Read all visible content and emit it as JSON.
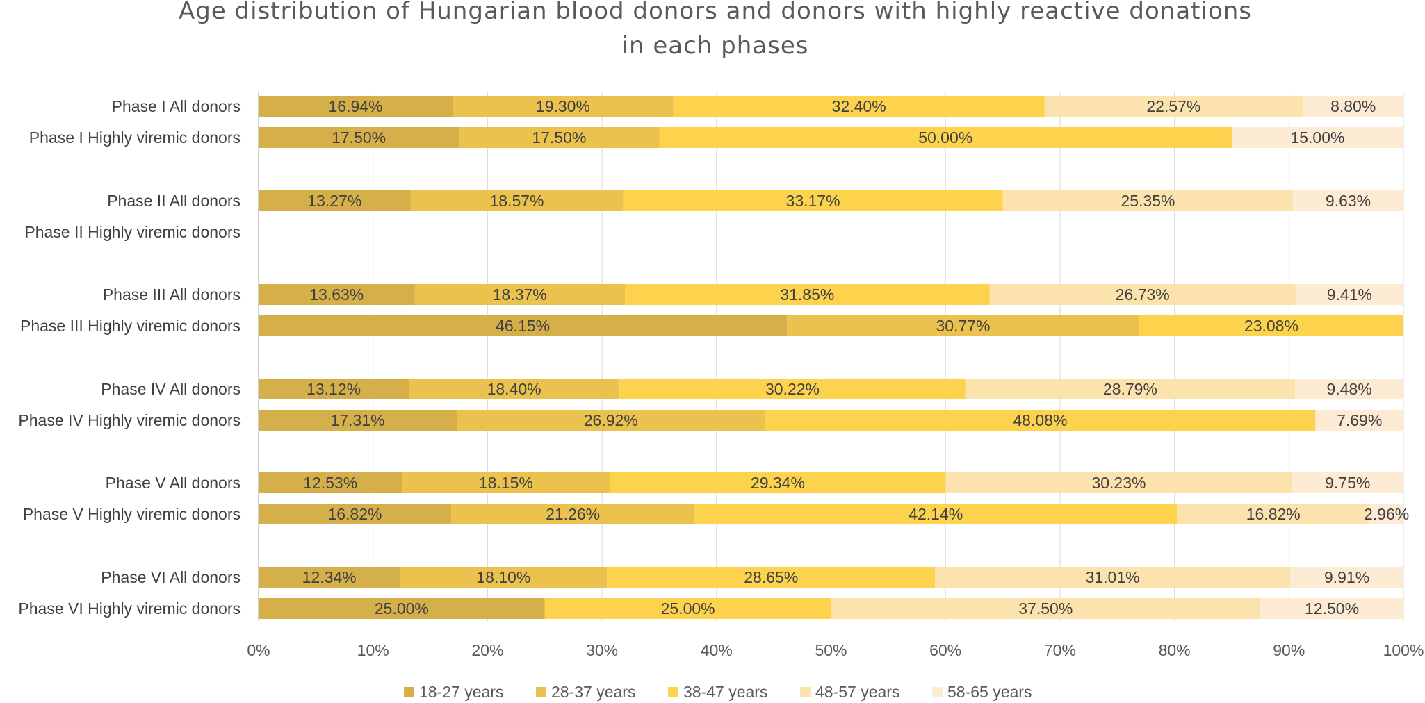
{
  "chart_data": {
    "type": "bar",
    "orientation": "horizontal",
    "stacked": "percent",
    "title_lines": [
      "Age distribution of Hungarian blood donors and donors with highly reactive donations",
      "in each phases"
    ],
    "categories": [
      "Phase I All donors",
      "Phase I Highly viremic donors",
      "Phase II All donors",
      "Phase II Highly viremic donors",
      "Phase III All donors",
      "Phase III Highly viremic donors",
      "Phase IV All donors",
      "Phase IV Highly viremic donors",
      "Phase V All donors",
      "Phase V Highly viremic donors",
      "Phase VI All donors",
      "Phase VI Highly viremic donors"
    ],
    "series": [
      {
        "name": "18-27 years",
        "color": "#D4AF4A",
        "values": [
          16.94,
          17.5,
          13.27,
          null,
          13.63,
          46.15,
          13.12,
          17.31,
          12.53,
          16.82,
          12.34,
          25.0
        ]
      },
      {
        "name": "28-37 years",
        "color": "#EBC24E",
        "values": [
          19.3,
          17.5,
          18.57,
          null,
          18.37,
          30.77,
          18.4,
          26.92,
          18.15,
          21.26,
          18.1,
          null
        ]
      },
      {
        "name": "38-47 years",
        "color": "#FDD34E",
        "values": [
          32.4,
          50.0,
          33.17,
          null,
          31.85,
          23.08,
          30.22,
          48.08,
          29.34,
          42.14,
          28.65,
          25.0
        ]
      },
      {
        "name": "48-57 years",
        "color": "#FCE3AD",
        "values": [
          22.57,
          null,
          25.35,
          null,
          26.73,
          null,
          28.79,
          null,
          30.23,
          16.82,
          31.01,
          37.5
        ]
      },
      {
        "name": "58-65 years",
        "color": "#FDEBD3",
        "values": [
          8.8,
          15.0,
          9.63,
          null,
          9.41,
          null,
          9.48,
          7.69,
          9.75,
          2.96,
          9.91,
          12.5
        ]
      }
    ],
    "x_ticks": [
      "0%",
      "10%",
      "20%",
      "30%",
      "40%",
      "50%",
      "60%",
      "70%",
      "80%",
      "90%",
      "100%"
    ],
    "xlim": [
      0,
      100
    ],
    "grid": true,
    "legend_position": "bottom"
  }
}
